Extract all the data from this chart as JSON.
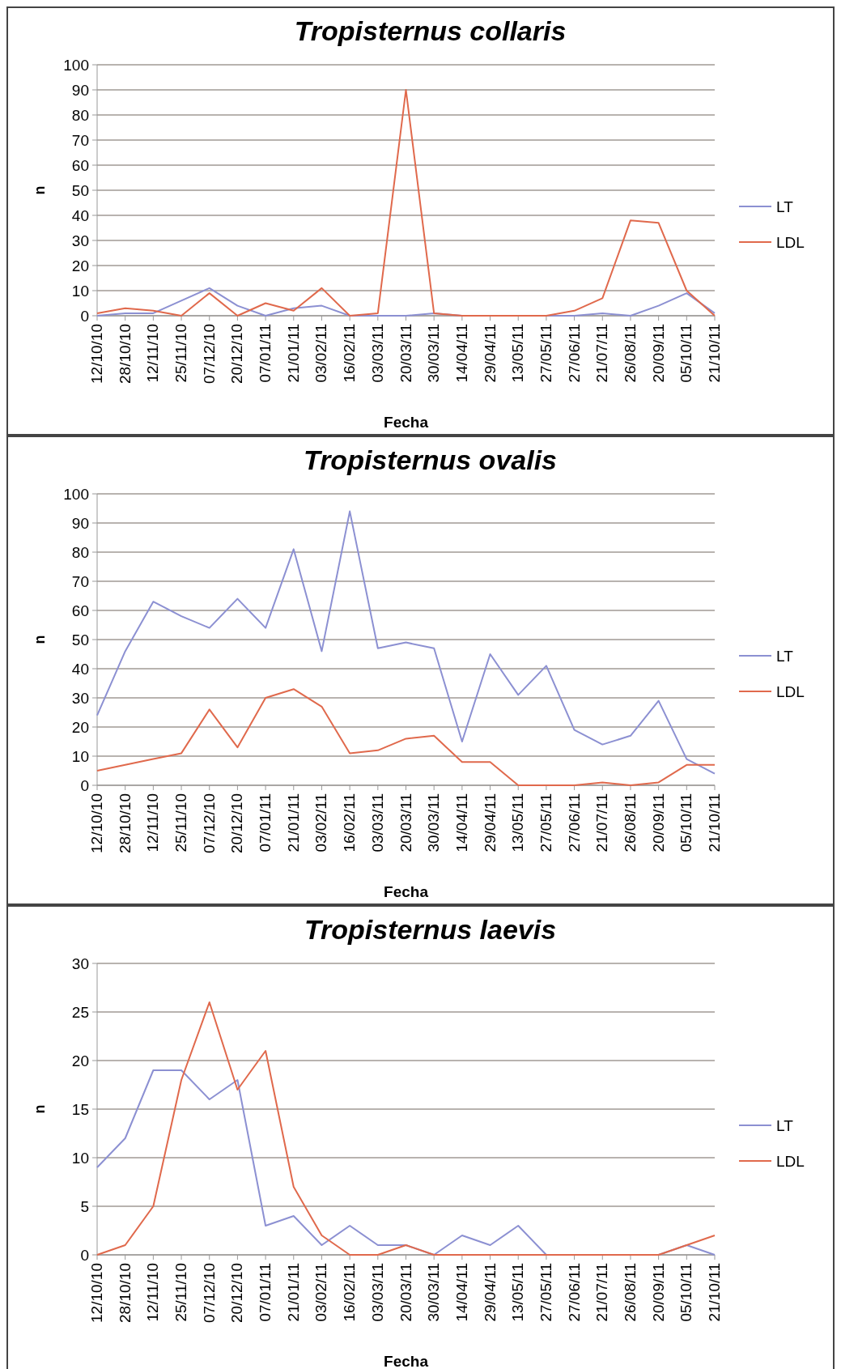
{
  "chart_data": [
    {
      "type": "line",
      "title": "Tropisternus collaris",
      "xlabel": "Fecha",
      "ylabel": "n",
      "categories": [
        "12/10/10",
        "28/10/10",
        "12/11/10",
        "25/11/10",
        "07/12/10",
        "20/12/10",
        "07/01/11",
        "21/01/11",
        "03/02/11",
        "16/02/11",
        "03/03/11",
        "20/03/11",
        "30/03/11",
        "14/04/11",
        "29/04/11",
        "13/05/11",
        "27/05/11",
        "27/06/11",
        "21/07/11",
        "26/08/11",
        "20/09/11",
        "05/10/11",
        "21/10/11"
      ],
      "ylim": [
        0,
        100
      ],
      "yticks": [
        0,
        10,
        20,
        30,
        40,
        50,
        60,
        70,
        80,
        90,
        100
      ],
      "grid": "y",
      "legend": "right",
      "marker": "none",
      "series": [
        {
          "name": "LT",
          "color": "#8c90d2",
          "values": [
            0,
            1,
            1,
            6,
            11,
            4,
            0,
            3,
            4,
            0,
            0,
            0,
            1,
            0,
            0,
            0,
            0,
            0,
            1,
            0,
            4,
            9,
            1
          ]
        },
        {
          "name": "LDL",
          "color": "#e0694c",
          "values": [
            1,
            3,
            2,
            0,
            9,
            0,
            5,
            2,
            11,
            0,
            1,
            90,
            1,
            0,
            0,
            0,
            0,
            2,
            7,
            38,
            37,
            10,
            0
          ]
        }
      ]
    },
    {
      "type": "line",
      "title": "Tropisternus ovalis",
      "xlabel": "Fecha",
      "ylabel": "n",
      "categories": [
        "12/10/10",
        "28/10/10",
        "12/11/10",
        "25/11/10",
        "07/12/10",
        "20/12/10",
        "07/01/11",
        "21/01/11",
        "03/02/11",
        "16/02/11",
        "03/03/11",
        "20/03/11",
        "30/03/11",
        "14/04/11",
        "29/04/11",
        "13/05/11",
        "27/05/11",
        "27/06/11",
        "21/07/11",
        "26/08/11",
        "20/09/11",
        "05/10/11",
        "21/10/11"
      ],
      "ylim": [
        0,
        100
      ],
      "yticks": [
        0,
        10,
        20,
        30,
        40,
        50,
        60,
        70,
        80,
        90,
        100
      ],
      "grid": "y",
      "legend": "right",
      "marker": "none",
      "series": [
        {
          "name": "LT",
          "color": "#8c90d2",
          "values": [
            24,
            46,
            63,
            58,
            54,
            64,
            54,
            81,
            46,
            94,
            47,
            49,
            47,
            15,
            45,
            31,
            41,
            19,
            14,
            17,
            29,
            9,
            4
          ]
        },
        {
          "name": "LDL",
          "color": "#e0694c",
          "values": [
            5,
            7,
            9,
            11,
            26,
            13,
            30,
            33,
            27,
            11,
            12,
            16,
            17,
            8,
            8,
            0,
            0,
            0,
            1,
            0,
            1,
            7,
            7
          ]
        }
      ]
    },
    {
      "type": "line",
      "title": "Tropisternus laevis",
      "xlabel": "Fecha",
      "ylabel": "n",
      "categories": [
        "12/10/10",
        "28/10/10",
        "12/11/10",
        "25/11/10",
        "07/12/10",
        "20/12/10",
        "07/01/11",
        "21/01/11",
        "03/02/11",
        "16/02/11",
        "03/03/11",
        "20/03/11",
        "30/03/11",
        "14/04/11",
        "29/04/11",
        "13/05/11",
        "27/05/11",
        "27/06/11",
        "21/07/11",
        "26/08/11",
        "20/09/11",
        "05/10/11",
        "21/10/11"
      ],
      "ylim": [
        0,
        30
      ],
      "yticks": [
        0,
        5,
        10,
        15,
        20,
        25,
        30
      ],
      "grid": "y",
      "legend": "right",
      "marker": "none",
      "series": [
        {
          "name": "LT",
          "color": "#8c90d2",
          "values": [
            9,
            12,
            19,
            19,
            16,
            18,
            3,
            4,
            1,
            3,
            1,
            1,
            0,
            2,
            1,
            3,
            0,
            0,
            0,
            0,
            0,
            1,
            0
          ]
        },
        {
          "name": "LDL",
          "color": "#e0694c",
          "values": [
            0,
            1,
            5,
            18,
            26,
            17,
            21,
            7,
            2,
            0,
            0,
            1,
            0,
            0,
            0,
            0,
            0,
            0,
            0,
            0,
            0,
            1,
            2
          ]
        }
      ]
    }
  ]
}
